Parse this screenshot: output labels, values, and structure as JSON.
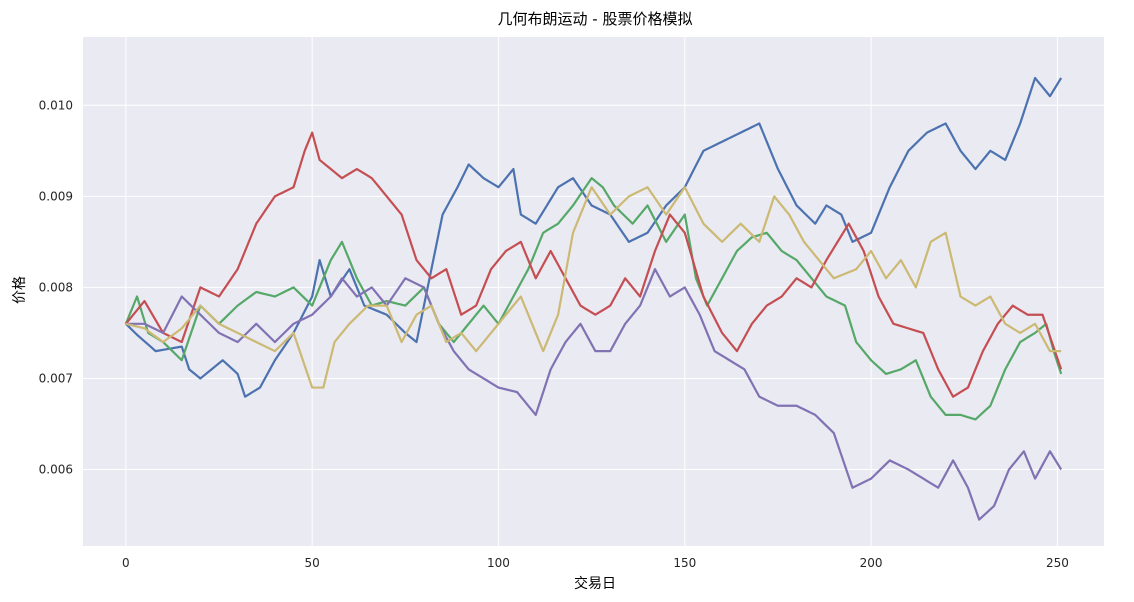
{
  "chart_data": {
    "type": "line",
    "title": "几何布朗运动 - 股票价格模拟",
    "xlabel": "交易日",
    "ylabel": "价格",
    "xlim": [
      -11.5,
      262.5
    ],
    "ylim": [
      0.00516,
      0.01075
    ],
    "xticks": [
      0,
      50,
      100,
      150,
      200,
      250
    ],
    "xtick_labels": [
      "0",
      "50",
      "100",
      "150",
      "200",
      "250"
    ],
    "yticks": [
      0.006,
      0.007,
      0.008,
      0.009,
      0.01
    ],
    "ytick_labels": [
      "0.006",
      "0.007",
      "0.008",
      "0.009",
      "0.010"
    ],
    "grid": true,
    "background": "#EAEAF2",
    "x": {
      "start": 0,
      "end": 251,
      "step": 1
    },
    "series": [
      {
        "color": "#4C72B0",
        "anchors": [
          [
            0,
            0.0076
          ],
          [
            3,
            0.00748
          ],
          [
            8,
            0.0073
          ],
          [
            15,
            0.00735
          ],
          [
            17,
            0.0071
          ],
          [
            20,
            0.007
          ],
          [
            26,
            0.0072
          ],
          [
            30,
            0.00705
          ],
          [
            32,
            0.0068
          ],
          [
            36,
            0.0069
          ],
          [
            40,
            0.0072
          ],
          [
            45,
            0.0075
          ],
          [
            50,
            0.0079
          ],
          [
            52,
            0.0083
          ],
          [
            55,
            0.0079
          ],
          [
            60,
            0.0082
          ],
          [
            64,
            0.0078
          ],
          [
            70,
            0.0077
          ],
          [
            75,
            0.0075
          ],
          [
            78,
            0.0074
          ],
          [
            82,
            0.0082
          ],
          [
            85,
            0.0088
          ],
          [
            89,
            0.0091
          ],
          [
            92,
            0.00935
          ],
          [
            96,
            0.0092
          ],
          [
            100,
            0.0091
          ],
          [
            104,
            0.0093
          ],
          [
            106,
            0.0088
          ],
          [
            110,
            0.0087
          ],
          [
            116,
            0.0091
          ],
          [
            120,
            0.0092
          ],
          [
            125,
            0.0089
          ],
          [
            130,
            0.0088
          ],
          [
            135,
            0.0085
          ],
          [
            140,
            0.0086
          ],
          [
            145,
            0.0089
          ],
          [
            150,
            0.0091
          ],
          [
            155,
            0.0095
          ],
          [
            160,
            0.0096
          ],
          [
            165,
            0.0097
          ],
          [
            170,
            0.0098
          ],
          [
            175,
            0.0093
          ],
          [
            180,
            0.0089
          ],
          [
            185,
            0.0087
          ],
          [
            188,
            0.0089
          ],
          [
            192,
            0.0088
          ],
          [
            195,
            0.0085
          ],
          [
            200,
            0.0086
          ],
          [
            205,
            0.0091
          ],
          [
            210,
            0.0095
          ],
          [
            215,
            0.0097
          ],
          [
            220,
            0.0098
          ],
          [
            224,
            0.0095
          ],
          [
            228,
            0.0093
          ],
          [
            232,
            0.0095
          ],
          [
            236,
            0.0094
          ],
          [
            240,
            0.0098
          ],
          [
            244,
            0.0103
          ],
          [
            248,
            0.0101
          ],
          [
            251,
            0.0103
          ]
        ]
      },
      {
        "color": "#DD8452",
        "anchors": []
      },
      {
        "color": "#55A868",
        "anchors": [
          [
            0,
            0.0076
          ],
          [
            3,
            0.0079
          ],
          [
            6,
            0.0075
          ],
          [
            10,
            0.0074
          ],
          [
            15,
            0.0072
          ],
          [
            20,
            0.0078
          ],
          [
            25,
            0.0076
          ],
          [
            30,
            0.0078
          ],
          [
            35,
            0.00795
          ],
          [
            40,
            0.0079
          ],
          [
            45,
            0.008
          ],
          [
            50,
            0.0078
          ],
          [
            55,
            0.0083
          ],
          [
            58,
            0.0085
          ],
          [
            62,
            0.0081
          ],
          [
            66,
            0.0078
          ],
          [
            70,
            0.00785
          ],
          [
            75,
            0.0078
          ],
          [
            80,
            0.008
          ],
          [
            84,
            0.0076
          ],
          [
            88,
            0.0074
          ],
          [
            92,
            0.0076
          ],
          [
            96,
            0.0078
          ],
          [
            100,
            0.0076
          ],
          [
            104,
            0.0079
          ],
          [
            108,
            0.0082
          ],
          [
            112,
            0.0086
          ],
          [
            116,
            0.0087
          ],
          [
            120,
            0.0089
          ],
          [
            125,
            0.0092
          ],
          [
            128,
            0.0091
          ],
          [
            131,
            0.0089
          ],
          [
            136,
            0.0087
          ],
          [
            140,
            0.0089
          ],
          [
            145,
            0.0085
          ],
          [
            150,
            0.0088
          ],
          [
            153,
            0.0081
          ],
          [
            156,
            0.0078
          ],
          [
            160,
            0.0081
          ],
          [
            164,
            0.0084
          ],
          [
            168,
            0.00855
          ],
          [
            172,
            0.0086
          ],
          [
            176,
            0.0084
          ],
          [
            180,
            0.0083
          ],
          [
            184,
            0.0081
          ],
          [
            188,
            0.0079
          ],
          [
            193,
            0.0078
          ],
          [
            196,
            0.0074
          ],
          [
            200,
            0.0072
          ],
          [
            204,
            0.00705
          ],
          [
            208,
            0.0071
          ],
          [
            212,
            0.0072
          ],
          [
            216,
            0.0068
          ],
          [
            220,
            0.0066
          ],
          [
            224,
            0.0066
          ],
          [
            228,
            0.00655
          ],
          [
            232,
            0.0067
          ],
          [
            236,
            0.0071
          ],
          [
            240,
            0.0074
          ],
          [
            244,
            0.0075
          ],
          [
            247,
            0.0076
          ],
          [
            249,
            0.0073
          ],
          [
            251,
            0.00705
          ]
        ]
      },
      {
        "color": "#C44E52",
        "anchors": [
          [
            0,
            0.0076
          ],
          [
            5,
            0.00785
          ],
          [
            10,
            0.0075
          ],
          [
            15,
            0.0074
          ],
          [
            20,
            0.008
          ],
          [
            25,
            0.0079
          ],
          [
            30,
            0.0082
          ],
          [
            35,
            0.0087
          ],
          [
            40,
            0.009
          ],
          [
            45,
            0.0091
          ],
          [
            48,
            0.0095
          ],
          [
            50,
            0.0097
          ],
          [
            52,
            0.0094
          ],
          [
            55,
            0.0093
          ],
          [
            58,
            0.0092
          ],
          [
            62,
            0.0093
          ],
          [
            66,
            0.0092
          ],
          [
            70,
            0.009
          ],
          [
            74,
            0.0088
          ],
          [
            78,
            0.0083
          ],
          [
            82,
            0.0081
          ],
          [
            86,
            0.0082
          ],
          [
            90,
            0.0077
          ],
          [
            94,
            0.0078
          ],
          [
            98,
            0.0082
          ],
          [
            102,
            0.0084
          ],
          [
            106,
            0.0085
          ],
          [
            110,
            0.0081
          ],
          [
            114,
            0.0084
          ],
          [
            118,
            0.0081
          ],
          [
            122,
            0.0078
          ],
          [
            126,
            0.0077
          ],
          [
            130,
            0.0078
          ],
          [
            134,
            0.0081
          ],
          [
            138,
            0.0079
          ],
          [
            142,
            0.0084
          ],
          [
            146,
            0.0088
          ],
          [
            150,
            0.0086
          ],
          [
            155,
            0.0079
          ],
          [
            160,
            0.0075
          ],
          [
            164,
            0.0073
          ],
          [
            168,
            0.0076
          ],
          [
            172,
            0.0078
          ],
          [
            176,
            0.0079
          ],
          [
            180,
            0.0081
          ],
          [
            184,
            0.008
          ],
          [
            188,
            0.0083
          ],
          [
            194,
            0.0087
          ],
          [
            198,
            0.0084
          ],
          [
            202,
            0.0079
          ],
          [
            206,
            0.0076
          ],
          [
            210,
            0.00755
          ],
          [
            214,
            0.0075
          ],
          [
            218,
            0.0071
          ],
          [
            222,
            0.0068
          ],
          [
            226,
            0.0069
          ],
          [
            230,
            0.0073
          ],
          [
            234,
            0.0076
          ],
          [
            238,
            0.0078
          ],
          [
            242,
            0.0077
          ],
          [
            246,
            0.0077
          ],
          [
            251,
            0.0071
          ]
        ]
      },
      {
        "color": "#8172B3",
        "anchors": [
          [
            0,
            0.0076
          ],
          [
            5,
            0.0076
          ],
          [
            10,
            0.0075
          ],
          [
            15,
            0.0079
          ],
          [
            20,
            0.0077
          ],
          [
            25,
            0.0075
          ],
          [
            30,
            0.0074
          ],
          [
            35,
            0.0076
          ],
          [
            40,
            0.0074
          ],
          [
            45,
            0.0076
          ],
          [
            50,
            0.0077
          ],
          [
            55,
            0.0079
          ],
          [
            58,
            0.0081
          ],
          [
            62,
            0.0079
          ],
          [
            66,
            0.008
          ],
          [
            70,
            0.0078
          ],
          [
            75,
            0.0081
          ],
          [
            80,
            0.008
          ],
          [
            84,
            0.0076
          ],
          [
            88,
            0.0073
          ],
          [
            92,
            0.0071
          ],
          [
            96,
            0.007
          ],
          [
            100,
            0.0069
          ],
          [
            105,
            0.00685
          ],
          [
            110,
            0.0066
          ],
          [
            114,
            0.0071
          ],
          [
            118,
            0.0074
          ],
          [
            122,
            0.0076
          ],
          [
            126,
            0.0073
          ],
          [
            130,
            0.0073
          ],
          [
            134,
            0.0076
          ],
          [
            138,
            0.0078
          ],
          [
            142,
            0.0082
          ],
          [
            146,
            0.0079
          ],
          [
            150,
            0.008
          ],
          [
            154,
            0.0077
          ],
          [
            158,
            0.0073
          ],
          [
            162,
            0.0072
          ],
          [
            166,
            0.0071
          ],
          [
            170,
            0.0068
          ],
          [
            175,
            0.0067
          ],
          [
            180,
            0.0067
          ],
          [
            185,
            0.0066
          ],
          [
            190,
            0.0064
          ],
          [
            195,
            0.0058
          ],
          [
            200,
            0.0059
          ],
          [
            205,
            0.0061
          ],
          [
            210,
            0.006
          ],
          [
            214,
            0.0059
          ],
          [
            218,
            0.0058
          ],
          [
            222,
            0.0061
          ],
          [
            226,
            0.0058
          ],
          [
            229,
            0.00545
          ],
          [
            233,
            0.0056
          ],
          [
            237,
            0.006
          ],
          [
            241,
            0.0062
          ],
          [
            244,
            0.0059
          ],
          [
            248,
            0.0062
          ],
          [
            251,
            0.006
          ]
        ]
      },
      {
        "color": "#CCB974",
        "anchors": [
          [
            0,
            0.0076
          ],
          [
            5,
            0.00755
          ],
          [
            10,
            0.0074
          ],
          [
            15,
            0.00755
          ],
          [
            20,
            0.0078
          ],
          [
            25,
            0.0076
          ],
          [
            30,
            0.0075
          ],
          [
            35,
            0.0074
          ],
          [
            40,
            0.0073
          ],
          [
            45,
            0.0075
          ],
          [
            50,
            0.0069
          ],
          [
            53,
            0.0069
          ],
          [
            56,
            0.0074
          ],
          [
            60,
            0.0076
          ],
          [
            65,
            0.0078
          ],
          [
            70,
            0.0078
          ],
          [
            74,
            0.0074
          ],
          [
            78,
            0.0077
          ],
          [
            82,
            0.0078
          ],
          [
            86,
            0.0074
          ],
          [
            90,
            0.0075
          ],
          [
            94,
            0.0073
          ],
          [
            98,
            0.0075
          ],
          [
            102,
            0.0077
          ],
          [
            106,
            0.0079
          ],
          [
            110,
            0.0075
          ],
          [
            112,
            0.0073
          ],
          [
            116,
            0.0077
          ],
          [
            120,
            0.0086
          ],
          [
            125,
            0.0091
          ],
          [
            130,
            0.0088
          ],
          [
            135,
            0.009
          ],
          [
            140,
            0.0091
          ],
          [
            145,
            0.0088
          ],
          [
            150,
            0.0091
          ],
          [
            155,
            0.0087
          ],
          [
            160,
            0.0085
          ],
          [
            165,
            0.0087
          ],
          [
            170,
            0.0085
          ],
          [
            174,
            0.009
          ],
          [
            178,
            0.0088
          ],
          [
            182,
            0.0085
          ],
          [
            186,
            0.0083
          ],
          [
            190,
            0.0081
          ],
          [
            196,
            0.0082
          ],
          [
            200,
            0.0084
          ],
          [
            204,
            0.0081
          ],
          [
            208,
            0.0083
          ],
          [
            212,
            0.008
          ],
          [
            216,
            0.0085
          ],
          [
            220,
            0.0086
          ],
          [
            224,
            0.0079
          ],
          [
            228,
            0.0078
          ],
          [
            232,
            0.0079
          ],
          [
            236,
            0.0076
          ],
          [
            240,
            0.0075
          ],
          [
            244,
            0.0076
          ],
          [
            248,
            0.0073
          ],
          [
            251,
            0.0073
          ]
        ]
      }
    ]
  }
}
